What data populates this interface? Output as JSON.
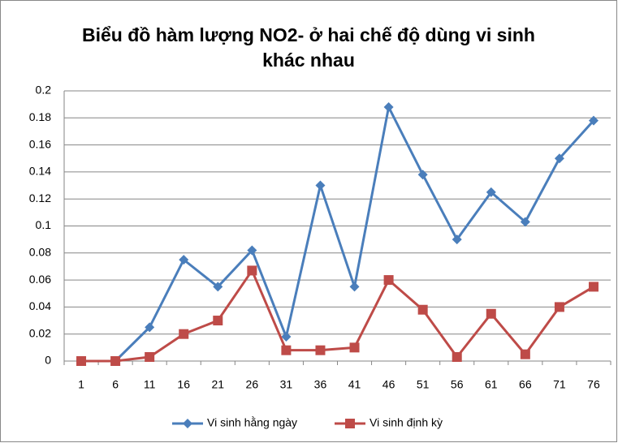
{
  "chart_data": {
    "type": "line",
    "title": "Biểu đồ hàm lượng NO2- ở hai chế độ dùng vi sinh khác nhau",
    "categories": [
      "1",
      "6",
      "11",
      "16",
      "21",
      "26",
      "31",
      "36",
      "41",
      "46",
      "51",
      "56",
      "61",
      "66",
      "71",
      "76"
    ],
    "series": [
      {
        "name": "Vi sinh hằng ngày",
        "color": "#4a7ebb",
        "marker": "diamond",
        "values": [
          0,
          0,
          0.025,
          0.075,
          0.055,
          0.082,
          0.018,
          0.13,
          0.055,
          0.188,
          0.138,
          0.09,
          0.125,
          0.103,
          0.15,
          0.178
        ]
      },
      {
        "name": "Vi sinh định kỳ",
        "color": "#be4b48",
        "marker": "square",
        "values": [
          0,
          0,
          0.003,
          0.02,
          0.03,
          0.067,
          0.008,
          0.008,
          0.01,
          0.06,
          0.038,
          0.003,
          0.035,
          0.005,
          0.04,
          0.055
        ]
      }
    ],
    "ylim": [
      0,
      0.2
    ],
    "yticks": [
      0,
      0.02,
      0.04,
      0.06,
      0.08,
      0.1,
      0.12,
      0.14,
      0.16,
      0.18,
      0.2
    ],
    "grid": true,
    "legend": "bottom"
  }
}
